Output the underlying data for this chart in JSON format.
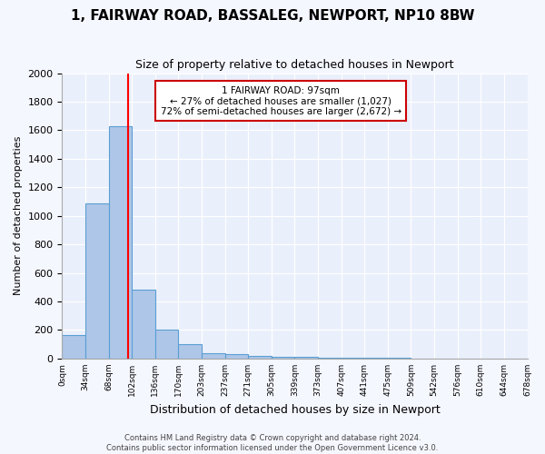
{
  "title": "1, FAIRWAY ROAD, BASSALEG, NEWPORT, NP10 8BW",
  "subtitle": "Size of property relative to detached houses in Newport",
  "xlabel": "Distribution of detached houses by size in Newport",
  "ylabel": "Number of detached properties",
  "bar_color": "#aec6e8",
  "bar_edge_color": "#5a9fd4",
  "background_color": "#eaf0fb",
  "grid_color": "#ffffff",
  "bin_labels": [
    "0sqm",
    "34sqm",
    "68sqm",
    "102sqm",
    "136sqm",
    "170sqm",
    "203sqm",
    "237sqm",
    "271sqm",
    "305sqm",
    "339sqm",
    "373sqm",
    "407sqm",
    "441sqm",
    "475sqm",
    "509sqm",
    "542sqm",
    "576sqm",
    "610sqm",
    "644sqm",
    "678sqm"
  ],
  "bar_values": [
    165,
    1090,
    1630,
    480,
    200,
    100,
    40,
    30,
    20,
    15,
    15,
    5,
    5,
    5,
    3,
    2,
    2,
    1,
    1,
    0
  ],
  "red_line_x": 2.85,
  "annotation_line1": "1 FAIRWAY ROAD: 97sqm",
  "annotation_line2": "← 27% of detached houses are smaller (1,027)",
  "annotation_line3": "72% of semi-detached houses are larger (2,672) →",
  "annotation_box_color": "#ffffff",
  "annotation_box_edge": "#cc0000",
  "ylim": [
    0,
    2000
  ],
  "yticks": [
    0,
    200,
    400,
    600,
    800,
    1000,
    1200,
    1400,
    1600,
    1800,
    2000
  ],
  "footer_line1": "Contains HM Land Registry data © Crown copyright and database right 2024.",
  "footer_line2": "Contains public sector information licensed under the Open Government Licence v3.0."
}
